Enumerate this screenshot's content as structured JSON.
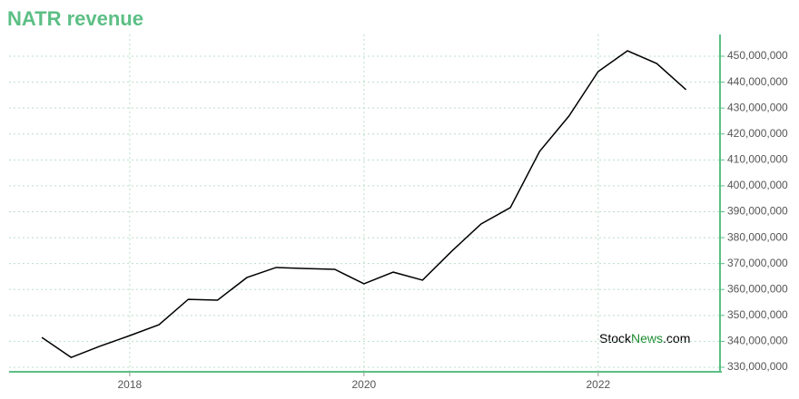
{
  "chart_data": {
    "type": "line",
    "title": "NATR revenue",
    "watermark": {
      "brand": "Stock",
      "accent": "News",
      "suffix": ".com"
    },
    "x": [
      2017.25,
      2017.5,
      2017.75,
      2018,
      2018.25,
      2018.5,
      2018.75,
      2019,
      2019.25,
      2019.5,
      2019.75,
      2020,
      2020.25,
      2020.5,
      2020.75,
      2021,
      2021.25,
      2021.5,
      2021.75,
      2022,
      2022.25,
      2022.5,
      2022.75
    ],
    "series": [
      {
        "name": "NATR revenue",
        "color": "#000000",
        "values": [
          341500000,
          333800000,
          338200000,
          342200000,
          346400000,
          356200000,
          355900000,
          364600000,
          368500000,
          368100000,
          367800000,
          362200000,
          366700000,
          363600000,
          374800000,
          385300000,
          391600000,
          413300000,
          426900000,
          444100000,
          452100000,
          447200000,
          437100000
        ]
      }
    ],
    "xlim": [
      2016.97,
      2023.04
    ],
    "xticks": [
      2018,
      2020,
      2022
    ],
    "ylim": [
      328250000,
      458400000
    ],
    "yticks": [
      {
        "value": 330000000,
        "label": "330,000,000"
      },
      {
        "value": 340000000,
        "label": "340,000,000"
      },
      {
        "value": 350000000,
        "label": "350,000,000"
      },
      {
        "value": 360000000,
        "label": "360,000,000"
      },
      {
        "value": 370000000,
        "label": "370,000,000"
      },
      {
        "value": 380000000,
        "label": "380,000,000"
      },
      {
        "value": 390000000,
        "label": "390,000,000"
      },
      {
        "value": 400000000,
        "label": "400,000,000"
      },
      {
        "value": 410000000,
        "label": "410,000,000"
      },
      {
        "value": 420000000,
        "label": "420,000,000"
      },
      {
        "value": 430000000,
        "label": "430,000,000"
      },
      {
        "value": 440000000,
        "label": "440,000,000"
      },
      {
        "value": 450000000,
        "label": "450,000,000"
      }
    ],
    "grid": true,
    "axis_color": "#5cbf85"
  }
}
